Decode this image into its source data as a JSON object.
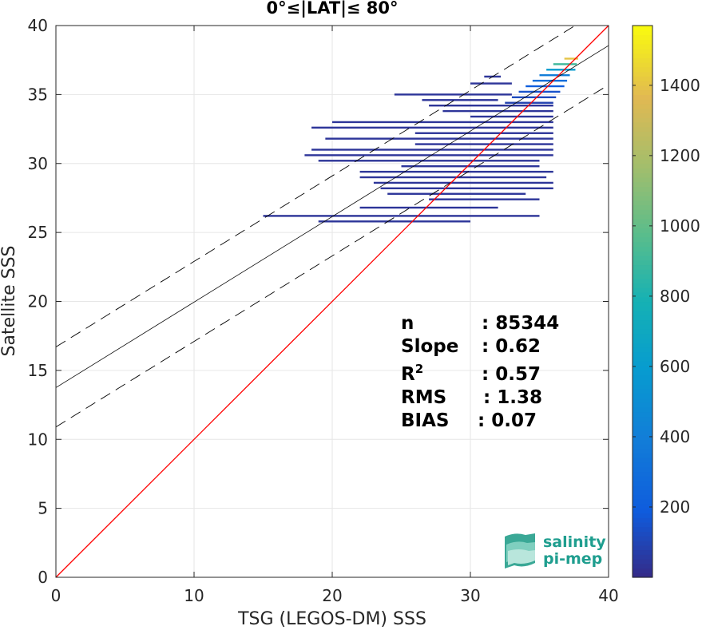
{
  "chart_data": {
    "type": "heatmap",
    "title": "0°≤|LAT|≤ 80°",
    "xlabel": "TSG (LEGOS-DM) SSS",
    "ylabel": "Satellite SSS",
    "xlim": [
      0,
      40
    ],
    "ylim": [
      0,
      40
    ],
    "xticks": [
      "0",
      "10",
      "20",
      "30",
      "40"
    ],
    "yticks": [
      "0",
      "5",
      "10",
      "15",
      "20",
      "25",
      "30",
      "35",
      "40"
    ],
    "colorbar": {
      "min": 0,
      "max": 1570,
      "ticks": [
        "200",
        "400",
        "600",
        "800",
        "1000",
        "1200",
        "1400"
      ],
      "tick_values": [
        200,
        400,
        600,
        800,
        1000,
        1200,
        1400
      ],
      "colormap": "parula"
    },
    "lines": {
      "identity": {
        "intercept": 0,
        "slope": 1,
        "color": "#ff0000"
      },
      "fit": {
        "intercept": 13.75,
        "slope": 0.62,
        "color": "#000000"
      },
      "fit_upper": {
        "intercept": 16.7,
        "slope": 0.62,
        "style": "dashed"
      },
      "fit_lower": {
        "intercept": 10.9,
        "slope": 0.62,
        "style": "dashed"
      }
    },
    "stats": [
      {
        "label": "n",
        "value": ": 85344"
      },
      {
        "label": "Slope",
        "value": ": 0.62"
      },
      {
        "label": "R",
        "sup": "2",
        "value": ": 0.57"
      },
      {
        "label": "RMS",
        "value": ": 1.38"
      },
      {
        "label": "BIAS",
        "value": ": 0.07"
      }
    ],
    "density_rows": [
      {
        "y": 37.6,
        "x0": 36.8,
        "x1": 37.8,
        "n": 1400
      },
      {
        "y": 37.2,
        "x0": 36.0,
        "x1": 37.7,
        "n": 900
      },
      {
        "y": 36.8,
        "x0": 35.5,
        "x1": 37.6,
        "n": 600
      },
      {
        "y": 36.4,
        "x0": 35.0,
        "x1": 37.2,
        "n": 400
      },
      {
        "y": 36.0,
        "x0": 34.5,
        "x1": 37.0,
        "n": 300
      },
      {
        "y": 35.6,
        "x0": 34.0,
        "x1": 36.8,
        "n": 200
      },
      {
        "y": 35.2,
        "x0": 33.5,
        "x1": 36.5,
        "n": 150
      },
      {
        "y": 34.8,
        "x0": 33.0,
        "x1": 36.2,
        "n": 120
      },
      {
        "y": 34.4,
        "x0": 32.5,
        "x1": 36.0,
        "n": 90
      },
      {
        "y": 36.3,
        "x0": 31.0,
        "x1": 32.2,
        "n": 40
      },
      {
        "y": 35.8,
        "x0": 30.0,
        "x1": 33.0,
        "n": 40
      },
      {
        "y": 35.0,
        "x0": 24.5,
        "x1": 33.0,
        "n": 40
      },
      {
        "y": 34.6,
        "x0": 26.5,
        "x1": 32.0,
        "n": 40
      },
      {
        "y": 34.2,
        "x0": 27.0,
        "x1": 36.0,
        "n": 40
      },
      {
        "y": 33.8,
        "x0": 28.0,
        "x1": 36.0,
        "n": 40
      },
      {
        "y": 33.4,
        "x0": 30.0,
        "x1": 36.0,
        "n": 40
      },
      {
        "y": 33.0,
        "x0": 20.0,
        "x1": 36.0,
        "n": 40
      },
      {
        "y": 32.6,
        "x0": 18.5,
        "x1": 36.0,
        "n": 40
      },
      {
        "y": 32.2,
        "x0": 26.0,
        "x1": 36.0,
        "n": 40
      },
      {
        "y": 31.8,
        "x0": 19.5,
        "x1": 36.0,
        "n": 40
      },
      {
        "y": 31.4,
        "x0": 26.0,
        "x1": 36.0,
        "n": 40
      },
      {
        "y": 31.0,
        "x0": 18.5,
        "x1": 36.0,
        "n": 40
      },
      {
        "y": 30.6,
        "x0": 18.0,
        "x1": 36.0,
        "n": 40
      },
      {
        "y": 30.2,
        "x0": 19.0,
        "x1": 35.0,
        "n": 40
      },
      {
        "y": 29.8,
        "x0": 25.0,
        "x1": 35.0,
        "n": 40
      },
      {
        "y": 29.4,
        "x0": 22.0,
        "x1": 36.0,
        "n": 40
      },
      {
        "y": 29.0,
        "x0": 22.0,
        "x1": 35.5,
        "n": 40
      },
      {
        "y": 28.6,
        "x0": 23.0,
        "x1": 36.0,
        "n": 40
      },
      {
        "y": 28.2,
        "x0": 23.5,
        "x1": 36.0,
        "n": 40
      },
      {
        "y": 27.8,
        "x0": 24.0,
        "x1": 34.0,
        "n": 40
      },
      {
        "y": 27.4,
        "x0": 27.0,
        "x1": 35.0,
        "n": 40
      },
      {
        "y": 26.8,
        "x0": 22.0,
        "x1": 32.0,
        "n": 40
      },
      {
        "y": 26.2,
        "x0": 15.0,
        "x1": 35.0,
        "n": 40
      },
      {
        "y": 25.8,
        "x0": 19.0,
        "x1": 30.0,
        "n": 40
      }
    ]
  },
  "logo": {
    "line1": "salinity",
    "line2": "pi-mep"
  }
}
